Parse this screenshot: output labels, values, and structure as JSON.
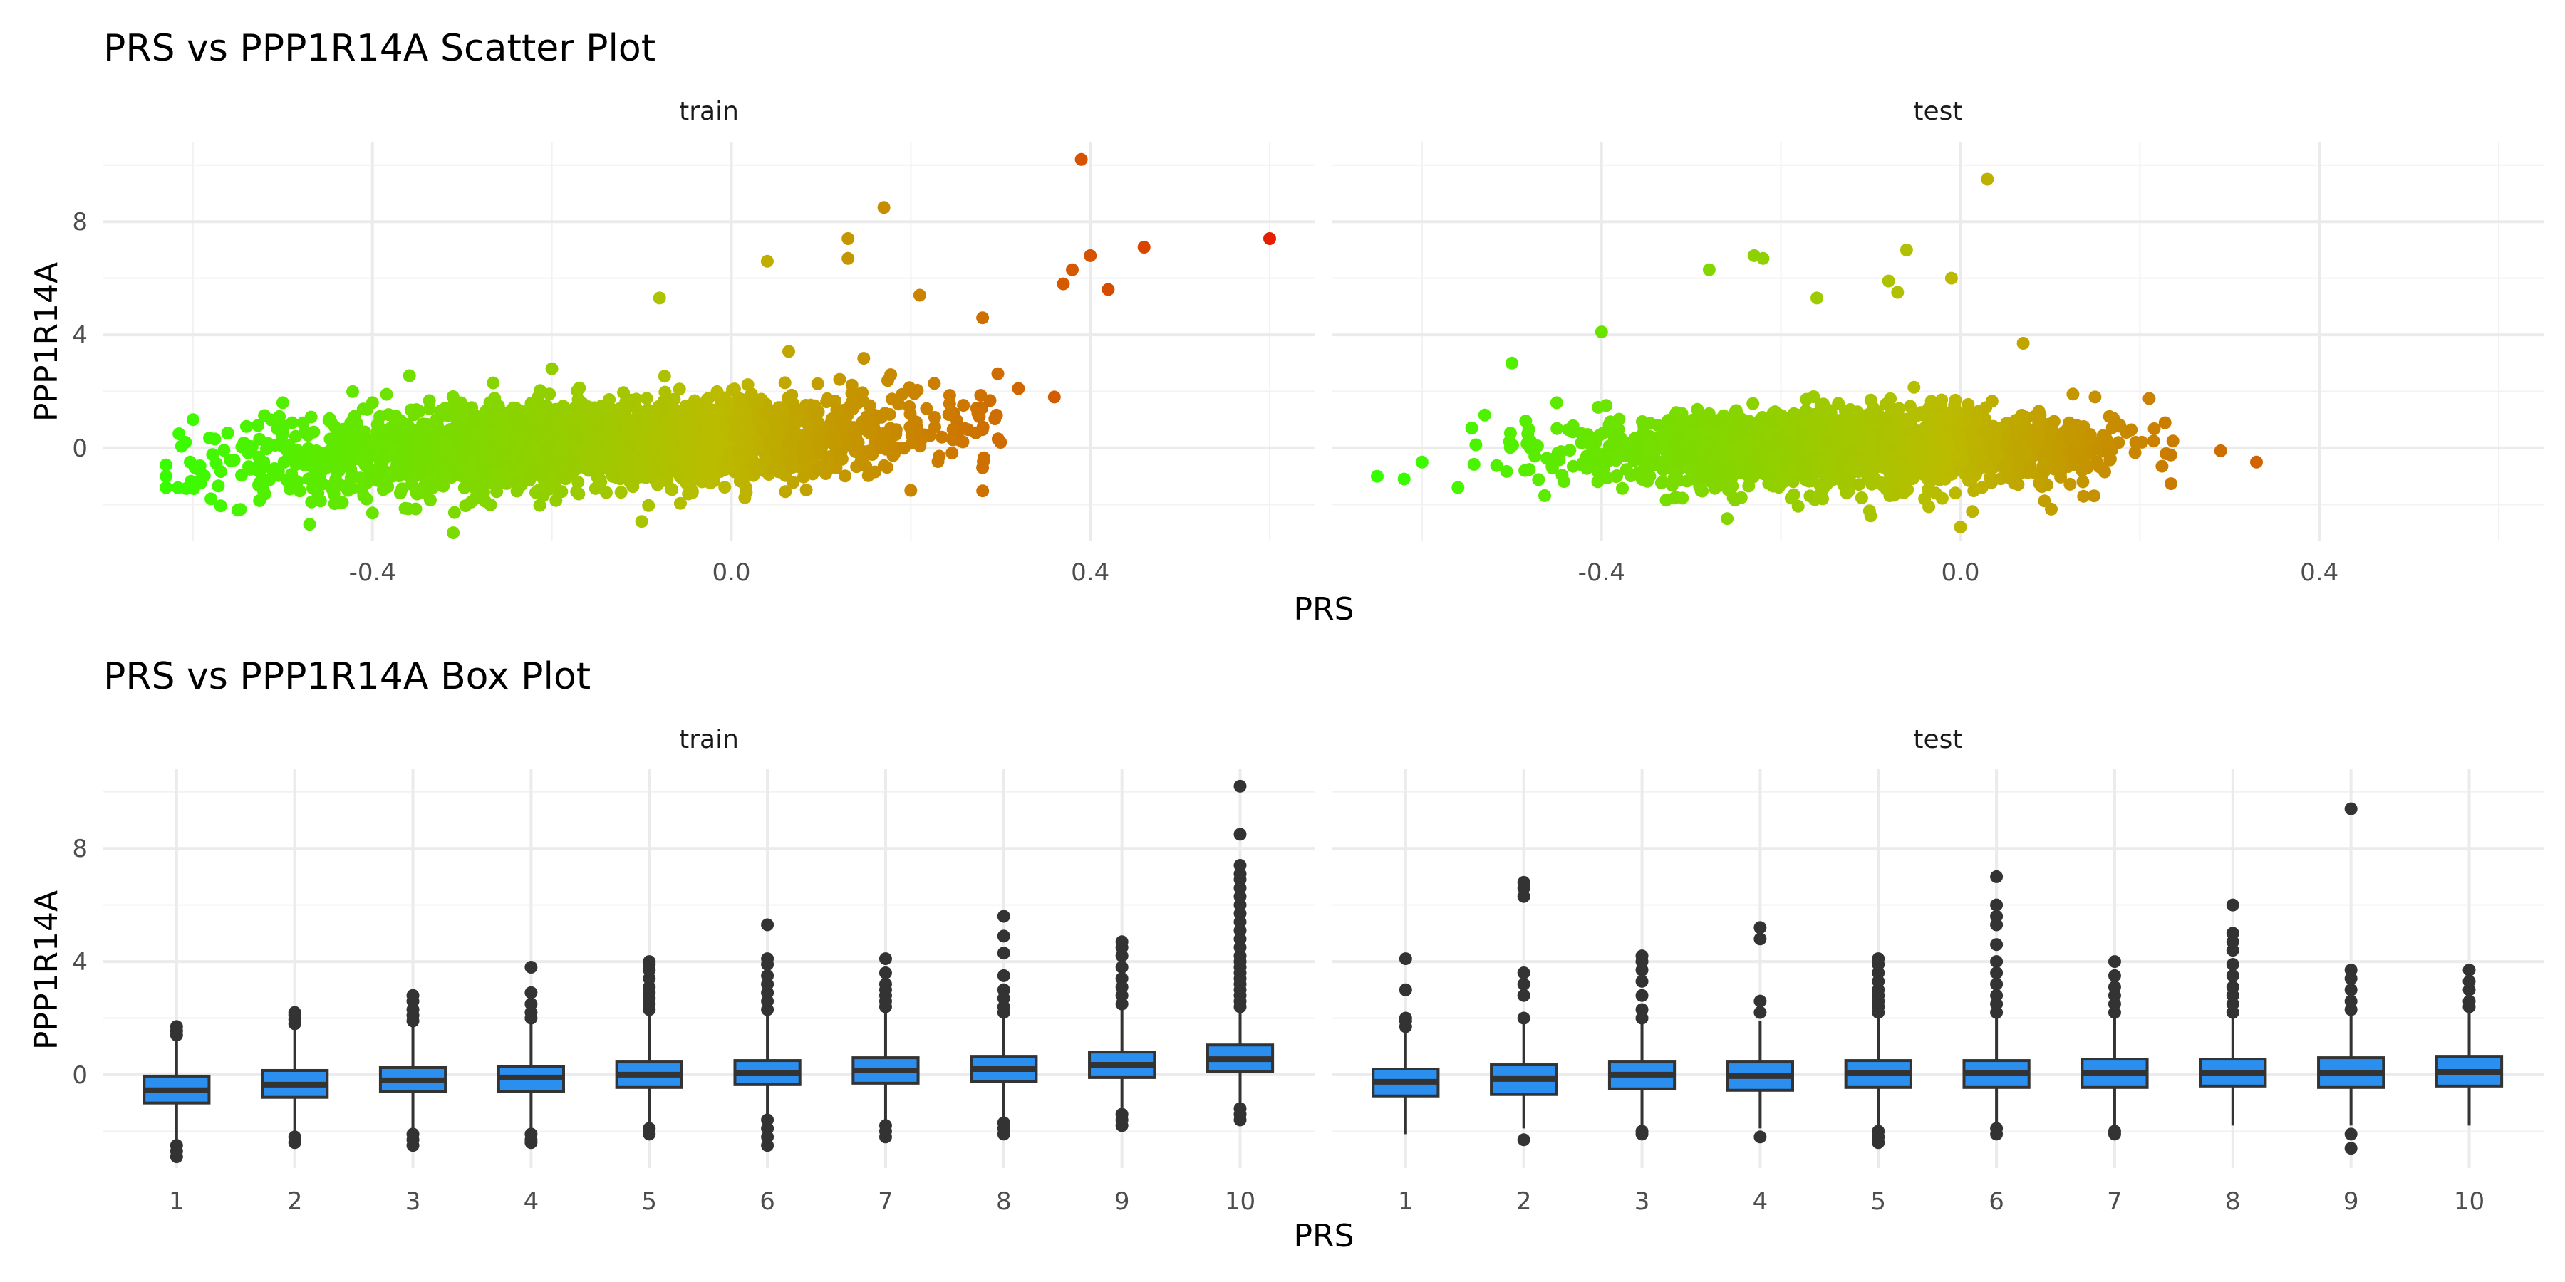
{
  "colors": {
    "scatter_low": "#33ff00",
    "scatter_mid": "#bbbb00",
    "scatter_high": "#e41a00",
    "box_fill": "#2b8ff0",
    "box_line": "#333333",
    "outlier": "#333333"
  },
  "chart_data": [
    {
      "type": "scatter",
      "title": "PRS vs PPP1R14A Scatter Plot",
      "xlabel": "PRS",
      "ylabel": "PPP1R14A",
      "color_scale": "gradient by PRS (green to red)",
      "grid": true,
      "legend": "none",
      "facets": [
        {
          "label": "train",
          "xlim": [
            -0.7,
            0.65
          ],
          "ylim": [
            -3.3,
            10.8
          ],
          "x_ticks": [
            -0.4,
            0.0,
            0.4
          ],
          "x_tick_labels": [
            "-0.4",
            "0.0",
            "0.4"
          ],
          "y_ticks": [
            0,
            4,
            8
          ],
          "y_tick_labels": [
            "0",
            "4",
            "8"
          ],
          "cloud": {
            "x_mean": -0.15,
            "x_sd": 0.18,
            "x_min": -0.62,
            "x_max": 0.3,
            "intercept": 0.15,
            "slope": 3.0,
            "noise_sd": 0.75,
            "n": 2600
          },
          "points": [
            {
              "x": 0.39,
              "y": 10.2
            },
            {
              "x": 0.6,
              "y": 7.4
            },
            {
              "x": 0.46,
              "y": 7.1
            },
            {
              "x": 0.17,
              "y": 8.5
            },
            {
              "x": 0.13,
              "y": 7.4
            },
            {
              "x": 0.13,
              "y": 6.7
            },
            {
              "x": 0.04,
              "y": 6.6
            },
            {
              "x": 0.4,
              "y": 6.8
            },
            {
              "x": 0.38,
              "y": 6.3
            },
            {
              "x": 0.37,
              "y": 5.8
            },
            {
              "x": 0.42,
              "y": 5.6
            },
            {
              "x": 0.36,
              "y": 1.8
            },
            {
              "x": 0.32,
              "y": 2.1
            },
            {
              "x": 0.28,
              "y": 4.6
            },
            {
              "x": 0.21,
              "y": 5.4
            },
            {
              "x": -0.08,
              "y": 5.3
            },
            {
              "x": -0.2,
              "y": 2.8
            },
            {
              "x": -0.63,
              "y": -0.6
            },
            {
              "x": -0.63,
              "y": -1.0
            },
            {
              "x": -0.63,
              "y": -1.4
            },
            {
              "x": -0.6,
              "y": 1.0
            },
            {
              "x": -0.58,
              "y": -1.8
            },
            {
              "x": -0.55,
              "y": -2.2
            },
            {
              "x": -0.5,
              "y": 1.6
            },
            {
              "x": -0.4,
              "y": 1.6
            },
            {
              "x": -0.4,
              "y": -2.3
            },
            {
              "x": -0.47,
              "y": -2.7
            },
            {
              "x": -0.31,
              "y": -3.0
            },
            {
              "x": -0.1,
              "y": -2.6
            },
            {
              "x": 0.2,
              "y": -1.5
            },
            {
              "x": 0.3,
              "y": 0.2
            },
            {
              "x": 0.28,
              "y": -0.7
            }
          ]
        },
        {
          "label": "test",
          "xlim": [
            -0.7,
            0.65
          ],
          "ylim": [
            -3.3,
            10.8
          ],
          "x_ticks": [
            -0.4,
            0.0,
            0.4
          ],
          "x_tick_labels": [
            "-0.4",
            "0.0",
            "0.4"
          ],
          "y_ticks": [
            0,
            4,
            8
          ],
          "y_tick_labels": [
            "0",
            "4",
            "8"
          ],
          "cloud": {
            "x_mean": -0.13,
            "x_sd": 0.14,
            "x_min": -0.55,
            "x_max": 0.24,
            "intercept": 0.0,
            "slope": 0.5,
            "noise_sd": 0.65,
            "n": 2000
          },
          "points": [
            {
              "x": 0.03,
              "y": 9.5
            },
            {
              "x": -0.06,
              "y": 7.0
            },
            {
              "x": -0.23,
              "y": 6.8
            },
            {
              "x": -0.22,
              "y": 6.7
            },
            {
              "x": -0.28,
              "y": 6.3
            },
            {
              "x": -0.01,
              "y": 6.0
            },
            {
              "x": -0.07,
              "y": 5.5
            },
            {
              "x": -0.08,
              "y": 5.9
            },
            {
              "x": -0.16,
              "y": 5.3
            },
            {
              "x": -0.4,
              "y": 4.1
            },
            {
              "x": -0.5,
              "y": 3.0
            },
            {
              "x": 0.07,
              "y": 3.7
            },
            {
              "x": -0.65,
              "y": -1.0
            },
            {
              "x": -0.62,
              "y": -1.1
            },
            {
              "x": -0.6,
              "y": -0.5
            },
            {
              "x": -0.56,
              "y": -1.4
            },
            {
              "x": 0.29,
              "y": -0.1
            },
            {
              "x": 0.33,
              "y": -0.5
            },
            {
              "x": -0.26,
              "y": -2.5
            },
            {
              "x": 0.0,
              "y": -2.8
            },
            {
              "x": -0.1,
              "y": -2.4
            },
            {
              "x": -0.45,
              "y": 1.6
            },
            {
              "x": 0.15,
              "y": 1.8
            }
          ]
        }
      ]
    },
    {
      "type": "box",
      "title": "PRS vs PPP1R14A Box Plot",
      "xlabel": "PRS",
      "ylabel": "PPP1R14A",
      "grid": true,
      "legend": "none",
      "facets": [
        {
          "label": "train",
          "categories": [
            "1",
            "2",
            "3",
            "4",
            "5",
            "6",
            "7",
            "8",
            "9",
            "10"
          ],
          "ylim": [
            -3.3,
            10.8
          ],
          "y_ticks": [
            0,
            4,
            8
          ],
          "y_tick_labels": [
            "0",
            "4",
            "8"
          ],
          "boxes": [
            {
              "q1": -1.0,
              "median": -0.55,
              "q3": -0.05,
              "lower": -2.3,
              "upper": 1.3,
              "outliers": [
                1.4,
                1.55,
                1.7,
                -2.5,
                -2.7,
                -2.9
              ]
            },
            {
              "q1": -0.8,
              "median": -0.35,
              "q3": 0.15,
              "lower": -2.1,
              "upper": 1.6,
              "outliers": [
                1.8,
                1.95,
                2.1,
                2.2,
                -2.2,
                -2.4
              ]
            },
            {
              "q1": -0.6,
              "median": -0.2,
              "q3": 0.25,
              "lower": -2.0,
              "upper": 1.8,
              "outliers": [
                1.9,
                2.1,
                2.3,
                2.6,
                2.8,
                -2.1,
                -2.3,
                -2.5
              ]
            },
            {
              "q1": -0.6,
              "median": -0.1,
              "q3": 0.3,
              "lower": -2.0,
              "upper": 1.9,
              "outliers": [
                2.0,
                2.2,
                2.5,
                2.9,
                3.8,
                -2.1,
                -2.3,
                -2.4
              ]
            },
            {
              "q1": -0.45,
              "median": 0.0,
              "q3": 0.45,
              "lower": -1.8,
              "upper": 2.2,
              "outliers": [
                2.3,
                2.5,
                2.7,
                2.9,
                3.1,
                3.4,
                3.7,
                3.9,
                4.0,
                -1.9,
                -2.1
              ]
            },
            {
              "q1": -0.35,
              "median": 0.05,
              "q3": 0.5,
              "lower": -1.5,
              "upper": 2.1,
              "outliers": [
                2.3,
                2.6,
                2.9,
                3.2,
                3.5,
                3.9,
                4.1,
                5.3,
                -1.6,
                -1.9,
                -2.2,
                -2.5
              ]
            },
            {
              "q1": -0.3,
              "median": 0.15,
              "q3": 0.6,
              "lower": -1.6,
              "upper": 2.2,
              "outliers": [
                2.4,
                2.6,
                2.8,
                3.0,
                3.2,
                3.6,
                4.1,
                -1.8,
                -2.0,
                -2.2
              ]
            },
            {
              "q1": -0.25,
              "median": 0.2,
              "q3": 0.65,
              "lower": -1.5,
              "upper": 2.1,
              "outliers": [
                2.2,
                2.4,
                2.7,
                3.0,
                3.5,
                4.3,
                4.9,
                5.6,
                -1.7,
                -1.9,
                -2.1
              ]
            },
            {
              "q1": -0.1,
              "median": 0.35,
              "q3": 0.8,
              "lower": -1.2,
              "upper": 2.3,
              "outliers": [
                2.5,
                2.8,
                3.1,
                3.4,
                3.8,
                4.2,
                4.5,
                4.7,
                -1.4,
                -1.6,
                -1.8
              ]
            },
            {
              "q1": 0.1,
              "median": 0.55,
              "q3": 1.05,
              "lower": -1.0,
              "upper": 2.3,
              "outliers": [
                2.4,
                2.6,
                2.8,
                3.0,
                3.2,
                3.4,
                3.6,
                3.8,
                4.0,
                4.2,
                4.5,
                4.8,
                5.1,
                5.4,
                5.7,
                6.0,
                6.3,
                6.6,
                6.9,
                7.1,
                7.4,
                8.5,
                10.2,
                -1.2,
                -1.4,
                -1.6
              ]
            }
          ]
        },
        {
          "label": "test",
          "categories": [
            "1",
            "2",
            "3",
            "4",
            "5",
            "6",
            "7",
            "8",
            "9",
            "10"
          ],
          "ylim": [
            -3.3,
            10.8
          ],
          "y_ticks": [
            0,
            4,
            8
          ],
          "y_tick_labels": [
            "0",
            "4",
            "8"
          ],
          "boxes": [
            {
              "q1": -0.75,
              "median": -0.25,
              "q3": 0.2,
              "lower": -2.1,
              "upper": 1.5,
              "outliers": [
                1.7,
                1.9,
                2.0,
                3.0,
                4.1
              ]
            },
            {
              "q1": -0.7,
              "median": -0.15,
              "q3": 0.35,
              "lower": -1.9,
              "upper": 1.8,
              "outliers": [
                2.0,
                2.8,
                3.2,
                3.6,
                6.3,
                6.6,
                6.8,
                -2.3
              ]
            },
            {
              "q1": -0.5,
              "median": 0.0,
              "q3": 0.45,
              "lower": -1.8,
              "upper": 1.9,
              "outliers": [
                2.0,
                2.3,
                2.8,
                3.3,
                3.7,
                4.0,
                4.2,
                -2.0,
                -2.1
              ]
            },
            {
              "q1": -0.55,
              "median": -0.05,
              "q3": 0.45,
              "lower": -1.9,
              "upper": 1.9,
              "outliers": [
                2.2,
                2.6,
                4.8,
                5.2,
                -2.2
              ]
            },
            {
              "q1": -0.45,
              "median": 0.05,
              "q3": 0.5,
              "lower": -1.8,
              "upper": 2.0,
              "outliers": [
                2.2,
                2.4,
                2.6,
                2.8,
                3.0,
                3.3,
                3.6,
                3.9,
                4.1,
                -2.0,
                -2.2,
                -2.4
              ]
            },
            {
              "q1": -0.45,
              "median": 0.05,
              "q3": 0.5,
              "lower": -1.7,
              "upper": 2.0,
              "outliers": [
                2.2,
                2.5,
                2.8,
                3.2,
                3.6,
                4.0,
                4.6,
                5.3,
                5.6,
                6.0,
                7.0,
                -1.9,
                -2.1
              ]
            },
            {
              "q1": -0.45,
              "median": 0.05,
              "q3": 0.55,
              "lower": -1.8,
              "upper": 2.0,
              "outliers": [
                2.2,
                2.5,
                2.8,
                3.1,
                3.5,
                4.0,
                -2.0,
                -2.1
              ]
            },
            {
              "q1": -0.4,
              "median": 0.05,
              "q3": 0.55,
              "lower": -1.8,
              "upper": 2.0,
              "outliers": [
                2.2,
                2.5,
                2.8,
                3.1,
                3.5,
                3.9,
                4.4,
                4.7,
                5.0,
                6.0
              ]
            },
            {
              "q1": -0.45,
              "median": 0.05,
              "q3": 0.6,
              "lower": -1.8,
              "upper": 2.1,
              "outliers": [
                2.3,
                2.6,
                3.0,
                3.4,
                3.7,
                9.4,
                -2.1,
                -2.6
              ]
            },
            {
              "q1": -0.4,
              "median": 0.1,
              "q3": 0.65,
              "lower": -1.8,
              "upper": 2.2,
              "outliers": [
                2.4,
                2.6,
                3.0,
                3.3,
                3.7
              ]
            }
          ]
        }
      ]
    }
  ]
}
